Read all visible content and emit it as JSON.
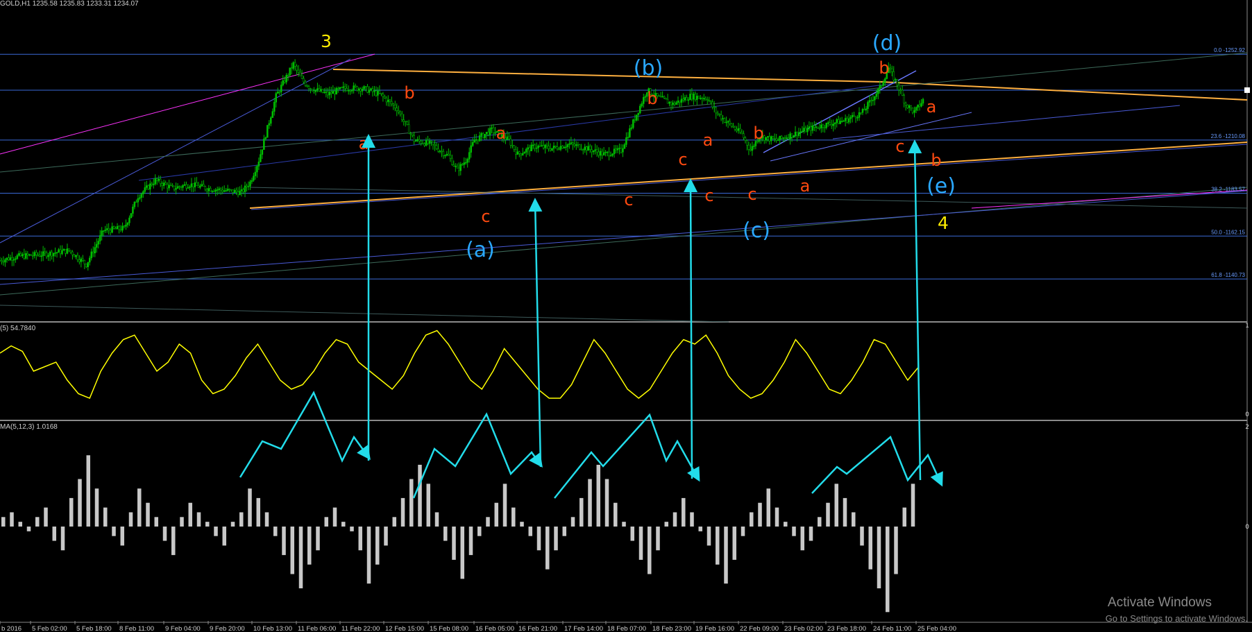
{
  "header": {
    "symbol": "GOLD,H1",
    "ohlc": "1235.58 1235.83 1233.31 1234.07"
  },
  "indicators": {
    "stoch_label": "(5) 54.7840",
    "macd_label": "MA(5,12,3) 1.0168",
    "stoch_scale": [
      "1",
      "0"
    ],
    "macd_scale": [
      "2",
      "0"
    ]
  },
  "time_axis": {
    "labels": [
      "b 2016",
      "5 Feb 02:00",
      "5 Feb 18:00",
      "8 Feb 11:00",
      "9 Feb 04:00",
      "9 Feb 20:00",
      "10 Feb 13:00",
      "11 Feb 06:00",
      "11 Feb 22:00",
      "12 Feb 15:00",
      "15 Feb 08:00",
      "16 Feb 05:00",
      "16 Feb 21:00",
      "17 Feb 14:00",
      "18 Feb 07:00",
      "18 Feb 23:00",
      "19 Feb 16:00",
      "22 Feb 09:00",
      "23 Feb 02:00",
      "23 Feb 18:00",
      "24 Feb 11:00",
      "25 Feb 04:00"
    ]
  },
  "fib_levels": [
    {
      "ratio": "0.0",
      "price": 1252.92,
      "label": "0.0 -1252.92"
    },
    {
      "ratio": "23.6",
      "price": 1210.08,
      "label": "23.6 -1210.08"
    },
    {
      "ratio": "38.2",
      "price": 1183.57,
      "label": "38.2 -1183.57"
    },
    {
      "ratio": "50.0",
      "price": 1162.15,
      "label": "50.0 -1162.15"
    },
    {
      "ratio": "61.8",
      "price": 1140.73,
      "label": "61.8 -1140.73"
    }
  ],
  "wave_labels": {
    "yellow": [
      "3",
      "4"
    ],
    "blue": [
      "(a)",
      "(b)",
      "(c)",
      "(d)",
      "(e)"
    ],
    "orange": [
      "a",
      "b",
      "c",
      "a",
      "b",
      "c",
      "a",
      "b",
      "c",
      "c",
      "a",
      "b",
      "c",
      "a",
      "b",
      "c"
    ]
  },
  "colors": {
    "candle_up": "#00c000",
    "stoch_line": "#ffff00",
    "histogram": "#c8c8c8",
    "arrow": "#22dcea",
    "fib_line": "#3a6ad8",
    "fib_text": "#6a9cff",
    "wave_yellow": "#ffee00",
    "wave_blue": "#2aa8ff",
    "wave_orange": "#ff4a10",
    "trend_orange": "#ffb040"
  },
  "watermark": {
    "line1": "Activate Windows",
    "line2": "Go to Settings to activate Windows."
  },
  "chart_data": [
    {
      "type": "candlestick",
      "title": "GOLD,H1",
      "ylim": [
        1120,
        1280
      ],
      "fib_prices": [
        1252.92,
        1210.08,
        1183.57,
        1162.15,
        1140.73
      ],
      "close_path": [
        [
          0,
          1150
        ],
        [
          10,
          1152
        ],
        [
          25,
          1153
        ],
        [
          40,
          1155
        ],
        [
          50,
          1148
        ],
        [
          60,
          1165
        ],
        [
          72,
          1166
        ],
        [
          80,
          1182
        ],
        [
          90,
          1190
        ],
        [
          100,
          1186
        ],
        [
          110,
          1188
        ],
        [
          120,
          1186
        ],
        [
          130,
          1185
        ],
        [
          140,
          1184
        ],
        [
          145,
          1189
        ],
        [
          150,
          1200
        ],
        [
          160,
          1232
        ],
        [
          170,
          1248
        ],
        [
          175,
          1240
        ],
        [
          180,
          1236
        ],
        [
          190,
          1233
        ],
        [
          200,
          1236
        ],
        [
          210,
          1236
        ],
        [
          220,
          1233
        ],
        [
          230,
          1226
        ],
        [
          240,
          1210
        ],
        [
          250,
          1208
        ],
        [
          260,
          1202
        ],
        [
          265,
          1195
        ],
        [
          270,
          1200
        ],
        [
          275,
          1210
        ],
        [
          285,
          1215
        ],
        [
          295,
          1210
        ],
        [
          300,
          1203
        ],
        [
          310,
          1207
        ],
        [
          320,
          1206
        ],
        [
          330,
          1208
        ],
        [
          340,
          1206
        ],
        [
          350,
          1203
        ],
        [
          360,
          1205
        ],
        [
          370,
          1225
        ],
        [
          375,
          1235
        ],
        [
          380,
          1232
        ],
        [
          390,
          1228
        ],
        [
          400,
          1232
        ],
        [
          410,
          1231
        ],
        [
          415,
          1224
        ],
        [
          420,
          1220
        ],
        [
          430,
          1213
        ],
        [
          435,
          1205
        ],
        [
          440,
          1212
        ],
        [
          450,
          1210
        ],
        [
          460,
          1213
        ],
        [
          470,
          1216
        ],
        [
          480,
          1218
        ],
        [
          490,
          1220
        ],
        [
          500,
          1224
        ],
        [
          510,
          1236
        ],
        [
          515,
          1246
        ],
        [
          520,
          1238
        ],
        [
          525,
          1228
        ],
        [
          530,
          1224
        ],
        [
          535,
          1230
        ]
      ]
    },
    {
      "type": "line",
      "name": "(5) 54.7840",
      "ylim": [
        0,
        100
      ],
      "values": [
        70,
        78,
        72,
        50,
        55,
        60,
        40,
        25,
        20,
        50,
        70,
        85,
        90,
        70,
        50,
        60,
        80,
        70,
        40,
        25,
        30,
        45,
        65,
        80,
        60,
        40,
        30,
        35,
        50,
        70,
        85,
        80,
        60,
        50,
        40,
        30,
        45,
        70,
        90,
        95,
        80,
        60,
        40,
        30,
        50,
        75,
        60,
        45,
        30,
        20,
        20,
        35,
        60,
        85,
        70,
        50,
        30,
        20,
        30,
        50,
        70,
        85,
        80,
        90,
        70,
        45,
        30,
        20,
        25,
        40,
        60,
        85,
        70,
        50,
        30,
        25,
        40,
        60,
        85,
        80,
        60,
        40,
        55
      ]
    },
    {
      "type": "bar",
      "name": "MA(5,12,3) 1.0168",
      "ylim": [
        -2,
        2
      ],
      "values": [
        0.2,
        0.3,
        0.1,
        -0.1,
        0.2,
        0.4,
        -0.3,
        -0.5,
        0.6,
        1.0,
        1.5,
        0.8,
        0.4,
        -0.2,
        -0.4,
        0.3,
        0.8,
        0.5,
        0.2,
        -0.3,
        -0.6,
        0.2,
        0.5,
        0.3,
        0.1,
        -0.2,
        -0.4,
        0.1,
        0.3,
        0.8,
        0.6,
        0.3,
        -0.2,
        -0.6,
        -1.0,
        -1.3,
        -0.8,
        -0.5,
        0.2,
        0.4,
        0.1,
        -0.1,
        -0.5,
        -1.2,
        -0.8,
        -0.4,
        0.2,
        0.6,
        1.0,
        1.3,
        0.9,
        0.3,
        -0.3,
        -0.7,
        -1.1,
        -0.6,
        -0.2,
        0.2,
        0.5,
        0.9,
        0.4,
        0.1,
        -0.2,
        -0.5,
        -0.9,
        -0.5,
        -0.2,
        0.2,
        0.6,
        1.0,
        1.3,
        1.0,
        0.5,
        0.1,
        -0.3,
        -0.7,
        -1.0,
        -0.5,
        0.1,
        0.3,
        0.6,
        0.3,
        -0.1,
        -0.4,
        -0.8,
        -1.2,
        -0.7,
        -0.2,
        0.3,
        0.5,
        0.8,
        0.4,
        0.1,
        -0.2,
        -0.5,
        -0.3,
        0.2,
        0.5,
        0.9,
        0.6,
        0.3,
        -0.4,
        -0.9,
        -1.3,
        -1.8,
        -1.0,
        0.4,
        0.9
      ]
    }
  ]
}
